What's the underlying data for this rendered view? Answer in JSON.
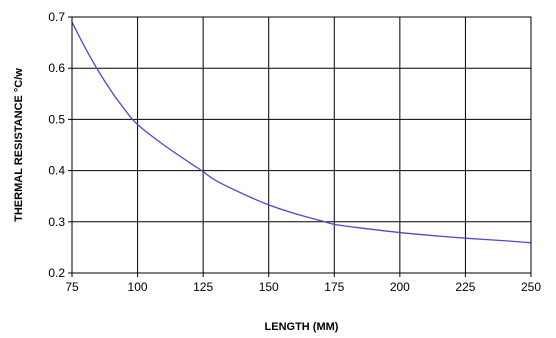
{
  "chart_data": {
    "type": "line",
    "title": "",
    "xlabel": "LENGTH (MM)",
    "ylabel": "THERMAL RESISTANCE °C/w",
    "xlim": [
      75,
      250
    ],
    "ylim": [
      0.2,
      0.7
    ],
    "grid": true,
    "x_ticks": [
      "75",
      "100",
      "125",
      "150",
      "175",
      "200",
      "225",
      "250"
    ],
    "y_ticks": [
      "0.2",
      "0.3",
      "0.4",
      "0.5",
      "0.6",
      "0.7"
    ],
    "x_tick_values": [
      75,
      100,
      125,
      150,
      175,
      200,
      225,
      250
    ],
    "y_tick_values": [
      0.2,
      0.3,
      0.4,
      0.5,
      0.6,
      0.7
    ],
    "series": [
      {
        "color": "#4a4ad0",
        "x": [
          75,
          80,
          85,
          90,
          95,
          100,
          110,
          120,
          125,
          130,
          140,
          150,
          160,
          170,
          175,
          185,
          200,
          215,
          225,
          240,
          250
        ],
        "y": [
          0.69,
          0.64,
          0.595,
          0.555,
          0.52,
          0.49,
          0.45,
          0.415,
          0.398,
          0.38,
          0.355,
          0.333,
          0.316,
          0.302,
          0.295,
          0.288,
          0.279,
          0.272,
          0.268,
          0.263,
          0.259
        ]
      }
    ]
  }
}
